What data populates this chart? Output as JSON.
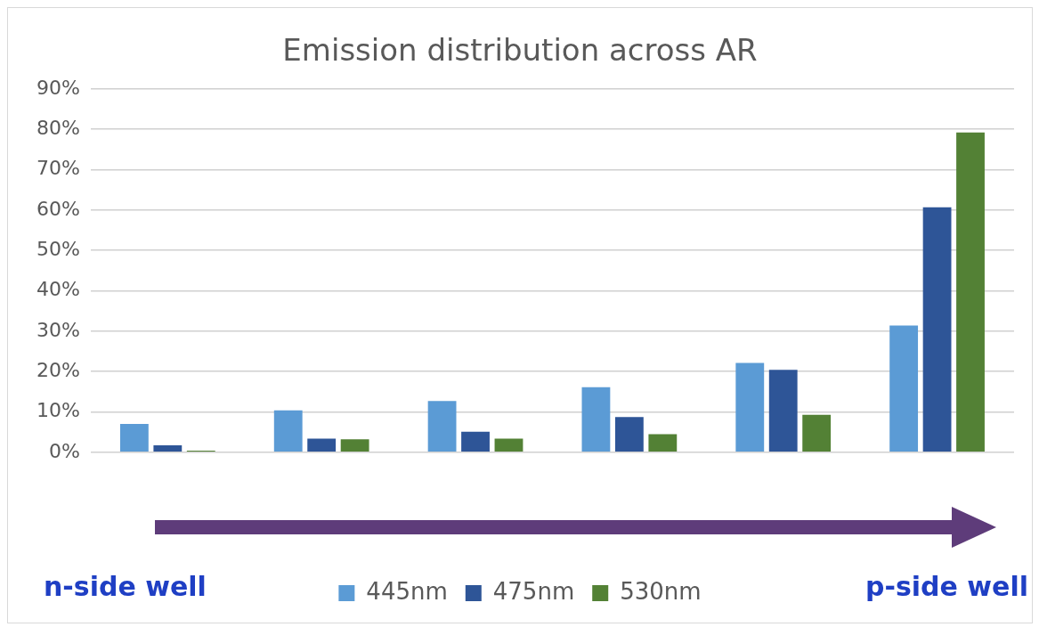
{
  "chart_data": {
    "type": "bar",
    "title": "Emission distribution across AR",
    "categories": [
      null,
      null,
      null,
      null,
      null,
      null
    ],
    "series": [
      {
        "name": "445nm",
        "color": "#5b9bd5",
        "values": [
          7.0,
          10.4,
          12.7,
          16.1,
          22.1,
          31.4
        ]
      },
      {
        "name": "475nm",
        "color": "#2e5597",
        "values": [
          1.7,
          3.4,
          5.1,
          8.7,
          20.4,
          60.7
        ]
      },
      {
        "name": "530nm",
        "color": "#538135",
        "values": [
          0.4,
          3.2,
          3.4,
          4.5,
          9.3,
          79.2
        ]
      }
    ],
    "ylim": [
      0,
      90
    ],
    "yticks": [
      {
        "value": 0,
        "label": "0%"
      },
      {
        "value": 10,
        "label": "10%"
      },
      {
        "value": 20,
        "label": "20%"
      },
      {
        "value": 30,
        "label": "30%"
      },
      {
        "value": 40,
        "label": "40%"
      },
      {
        "value": 50,
        "label": "50%"
      },
      {
        "value": 60,
        "label": "60%"
      },
      {
        "value": 70,
        "label": "70%"
      },
      {
        "value": 80,
        "label": "80%"
      },
      {
        "value": 90,
        "label": "90%"
      }
    ],
    "grid": "y",
    "legend": "bottom",
    "annotations": [
      "n-side well",
      "p-side well"
    ]
  }
}
